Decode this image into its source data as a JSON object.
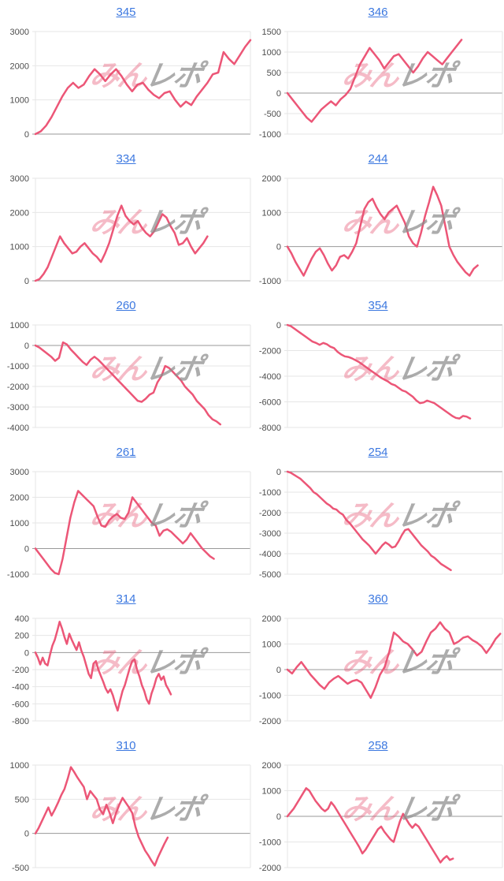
{
  "page": {
    "background": "#ffffff"
  },
  "style": {
    "line_color": "#ec5677",
    "grid_color": "#e6e6e6",
    "zero_line_color": "#999999",
    "axis_label_color": "#4d4d4d",
    "link_color": "#3c78e0"
  },
  "watermark": {
    "text_red": "みん",
    "text_gray": "レポ"
  },
  "chart_data": [
    {
      "type": "line",
      "title": "345",
      "ylim": [
        0,
        3000
      ],
      "yticks": [
        3000,
        2000,
        1000,
        0
      ],
      "x_end": 1.0,
      "values": [
        0,
        80,
        250,
        500,
        800,
        1100,
        1350,
        1500,
        1350,
        1450,
        1700,
        1900,
        1750,
        1550,
        1750,
        1900,
        1700,
        1450,
        1250,
        1450,
        1500,
        1300,
        1150,
        1050,
        1200,
        1250,
        1000,
        800,
        950,
        850,
        1100,
        1300,
        1500,
        1750,
        1800,
        2400,
        2200,
        2050,
        2300,
        2550,
        2750
      ]
    },
    {
      "type": "line",
      "title": "346",
      "ylim": [
        -1000,
        1500
      ],
      "yticks": [
        1500,
        1000,
        500,
        0,
        -500,
        -1000
      ],
      "x_end": 0.81,
      "values": [
        0,
        -150,
        -300,
        -450,
        -600,
        -700,
        -550,
        -400,
        -300,
        -200,
        -300,
        -150,
        -50,
        100,
        400,
        700,
        900,
        1100,
        950,
        800,
        600,
        750,
        900,
        950,
        800,
        650,
        500,
        650,
        850,
        1000,
        900,
        800,
        700,
        850,
        1000,
        1150,
        1300
      ]
    },
    {
      "type": "line",
      "title": "334",
      "ylim": [
        0,
        3000
      ],
      "yticks": [
        3000,
        2000,
        1000,
        0
      ],
      "x_end": 0.8,
      "values": [
        0,
        50,
        200,
        400,
        700,
        1000,
        1300,
        1100,
        950,
        800,
        850,
        1000,
        1100,
        950,
        800,
        700,
        550,
        800,
        1100,
        1500,
        1900,
        2200,
        1900,
        1750,
        1650,
        1750,
        1550,
        1400,
        1300,
        1450,
        1700,
        1950,
        1850,
        1600,
        1400,
        1050,
        1100,
        1250,
        1000,
        800,
        950,
        1100,
        1300
      ]
    },
    {
      "type": "line",
      "title": "244",
      "ylim": [
        -1000,
        2000
      ],
      "yticks": [
        2000,
        1000,
        0,
        -1000
      ],
      "x_end": 0.885,
      "values": [
        0,
        -200,
        -450,
        -650,
        -850,
        -600,
        -350,
        -150,
        -50,
        -250,
        -500,
        -700,
        -550,
        -300,
        -250,
        -350,
        -150,
        100,
        600,
        1100,
        1300,
        1400,
        1150,
        950,
        800,
        1000,
        1100,
        1200,
        950,
        700,
        300,
        100,
        0,
        400,
        900,
        1300,
        1750,
        1500,
        1200,
        600,
        0,
        -250,
        -450,
        -600,
        -750,
        -850,
        -650,
        -550
      ]
    },
    {
      "type": "line",
      "title": "260",
      "ylim": [
        -4000,
        1000
      ],
      "yticks": [
        1000,
        0,
        -1000,
        -2000,
        -3000,
        -4000
      ],
      "x_end": 0.86,
      "values": [
        0,
        -100,
        -250,
        -400,
        -550,
        -750,
        -600,
        150,
        50,
        -200,
        -400,
        -600,
        -800,
        -950,
        -700,
        -550,
        -700,
        -900,
        -1100,
        -1300,
        -1500,
        -1700,
        -1900,
        -2100,
        -2300,
        -2500,
        -2700,
        -2750,
        -2600,
        -2400,
        -2300,
        -1800,
        -1500,
        -1000,
        -1100,
        -1300,
        -1500,
        -1700,
        -2000,
        -2200,
        -2400,
        -2700,
        -2900,
        -3100,
        -3400,
        -3600,
        -3700,
        -3850
      ]
    },
    {
      "type": "line",
      "title": "354",
      "ylim": [
        -8000,
        0
      ],
      "yticks": [
        0,
        -2000,
        -4000,
        -6000,
        -8000
      ],
      "x_end": 0.85,
      "values": [
        0,
        -100,
        -300,
        -500,
        -700,
        -900,
        -1100,
        -1300,
        -1400,
        -1550,
        -1400,
        -1500,
        -1700,
        -1800,
        -2100,
        -2300,
        -2450,
        -2500,
        -2600,
        -2750,
        -2900,
        -3100,
        -3300,
        -3500,
        -3700,
        -3900,
        -4100,
        -4250,
        -4400,
        -4600,
        -4700,
        -4900,
        -5100,
        -5200,
        -5400,
        -5600,
        -5900,
        -6100,
        -6050,
        -5900,
        -6000,
        -6100,
        -6300,
        -6500,
        -6700,
        -6900,
        -7100,
        -7250,
        -7300,
        -7100,
        -7150,
        -7300
      ]
    },
    {
      "type": "line",
      "title": "261",
      "ylim": [
        -1000,
        3000
      ],
      "yticks": [
        3000,
        2000,
        1000,
        0,
        -1000
      ],
      "x_end": 0.83,
      "values": [
        0,
        -200,
        -400,
        -600,
        -800,
        -950,
        -1000,
        -400,
        400,
        1200,
        1800,
        2250,
        2100,
        1950,
        1800,
        1650,
        1250,
        900,
        850,
        1100,
        1250,
        1350,
        1200,
        1150,
        1400,
        2000,
        1800,
        1600,
        1400,
        1200,
        1000,
        900,
        500,
        700,
        750,
        650,
        500,
        350,
        200,
        350,
        600,
        400,
        200,
        0,
        -150,
        -300,
        -400
      ]
    },
    {
      "type": "line",
      "title": "254",
      "ylim": [
        -5000,
        0
      ],
      "yticks": [
        0,
        -1000,
        -2000,
        -3000,
        -4000,
        -5000
      ],
      "x_end": 0.76,
      "values": [
        0,
        -50,
        -150,
        -250,
        -350,
        -500,
        -650,
        -800,
        -1000,
        -1100,
        -1250,
        -1400,
        -1550,
        -1650,
        -1800,
        -1850,
        -2000,
        -2100,
        -2350,
        -2500,
        -2700,
        -2900,
        -3100,
        -3300,
        -3450,
        -3600,
        -3800,
        -4000,
        -3800,
        -3600,
        -3450,
        -3550,
        -3700,
        -3650,
        -3400,
        -3100,
        -2850,
        -2800,
        -3000,
        -3200,
        -3400,
        -3600,
        -3750,
        -3900,
        -4100,
        -4200,
        -4350,
        -4500,
        -4600,
        -4700,
        -4800
      ]
    },
    {
      "type": "line",
      "title": "314",
      "ylim": [
        -800,
        400
      ],
      "yticks": [
        400,
        200,
        0,
        -200,
        -400,
        -600,
        -800
      ],
      "x_end": 0.63,
      "values": [
        0,
        -60,
        -140,
        -60,
        -130,
        -150,
        -30,
        80,
        150,
        250,
        360,
        280,
        180,
        100,
        220,
        150,
        90,
        30,
        120,
        20,
        -50,
        -150,
        -250,
        -300,
        -130,
        -100,
        -200,
        -270,
        -340,
        -420,
        -470,
        -430,
        -500,
        -600,
        -680,
        -560,
        -450,
        -380,
        -280,
        -180,
        -100,
        -80,
        -200,
        -280,
        -380,
        -450,
        -550,
        -600,
        -480,
        -400,
        -300,
        -250,
        -320,
        -280,
        -380,
        -430,
        -490
      ]
    },
    {
      "type": "line",
      "title": "360",
      "ylim": [
        -2000,
        2000
      ],
      "yticks": [
        2000,
        1000,
        0,
        -1000,
        -2000
      ],
      "x_end": 0.99,
      "values": [
        0,
        -150,
        100,
        300,
        50,
        -200,
        -400,
        -600,
        -750,
        -500,
        -350,
        -250,
        -400,
        -550,
        -450,
        -400,
        -500,
        -800,
        -1100,
        -700,
        -200,
        100,
        700,
        1450,
        1300,
        1100,
        1000,
        800,
        550,
        700,
        1100,
        1450,
        1600,
        1850,
        1600,
        1450,
        1000,
        1100,
        1250,
        1300,
        1150,
        1050,
        900,
        650,
        900,
        1200,
        1400
      ]
    },
    {
      "type": "line",
      "title": "310",
      "ylim": [
        -500,
        1000
      ],
      "yticks": [
        1000,
        500,
        0,
        -500
      ],
      "x_end": 0.615,
      "values": [
        0,
        80,
        180,
        280,
        380,
        260,
        350,
        450,
        560,
        650,
        800,
        970,
        900,
        820,
        750,
        680,
        500,
        620,
        560,
        500,
        350,
        280,
        420,
        300,
        150,
        300,
        420,
        520,
        450,
        380,
        300,
        100,
        -50,
        -150,
        -250,
        -320,
        -400,
        -470,
        -350,
        -250,
        -150,
        -60
      ]
    },
    {
      "type": "line",
      "title": "258",
      "ylim": [
        -2000,
        2000
      ],
      "yticks": [
        2000,
        1000,
        0,
        -1000,
        -2000
      ],
      "x_end": 0.77,
      "values": [
        0,
        150,
        300,
        500,
        700,
        900,
        1100,
        1000,
        800,
        600,
        450,
        300,
        200,
        300,
        550,
        400,
        200,
        0,
        -200,
        -400,
        -600,
        -800,
        -1000,
        -1200,
        -1450,
        -1300,
        -1100,
        -900,
        -700,
        -500,
        -400,
        -600,
        -750,
        -900,
        -1000,
        -600,
        -200,
        100,
        -100,
        -300,
        -450,
        -300,
        -400,
        -600,
        -800,
        -1000,
        -1200,
        -1400,
        -1600,
        -1800,
        -1650,
        -1550,
        -1700,
        -1650
      ]
    }
  ]
}
